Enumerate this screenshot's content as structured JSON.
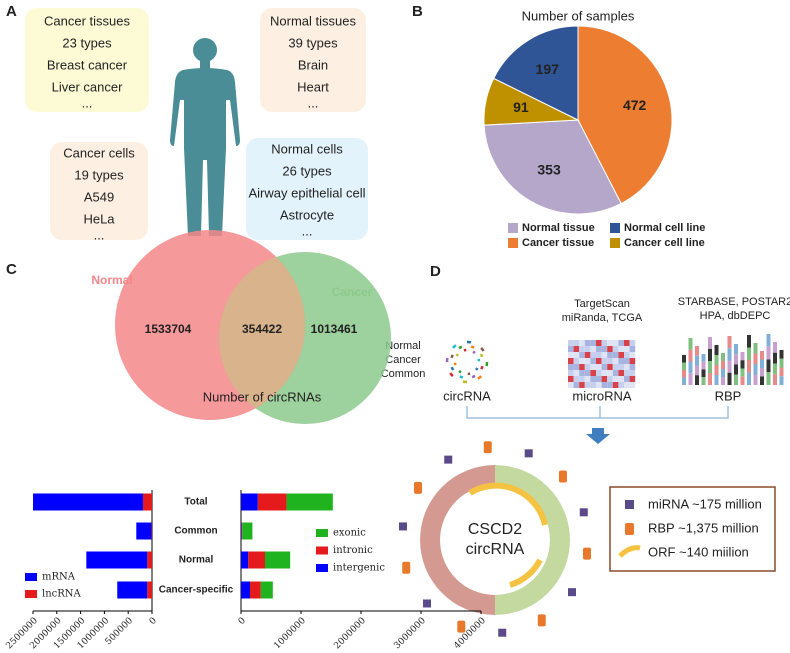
{
  "panels": {
    "letters": [
      "A",
      "B",
      "C",
      "D"
    ]
  },
  "panel_a": {
    "boxes": [
      {
        "lines": [
          "Cancer tissues",
          "23 types",
          "Breast cancer",
          "Liver cancer",
          "..."
        ]
      },
      {
        "lines": [
          "Normal tissues",
          "39 types",
          "Brain",
          "Heart",
          "..."
        ]
      },
      {
        "lines": [
          "Cancer cells",
          "19 types",
          "A549",
          "HeLa",
          "..."
        ]
      },
      {
        "lines": [
          "Normal cells",
          "26 types",
          "Airway epithelial cell",
          "Astrocyte",
          "..."
        ]
      }
    ]
  },
  "panel_d": {
    "circ_sources": [
      "Normal",
      "Cancer",
      "Common"
    ],
    "circ_label": "circRNA",
    "mirna_sources": [
      "TargetScan",
      "miRanda, TCGA"
    ],
    "mirna_label": "microRNA",
    "rbp_sources": [
      "STARBASE, POSTAR2",
      "HPA, dbDEPC"
    ],
    "rbp_label": "RBP",
    "center": [
      "CSCD2",
      "circRNA"
    ],
    "legend": [
      "miRNA ~175 million",
      "RBP ~1,375 million",
      "ORF ~140 miilion"
    ]
  },
  "chart_data": [
    {
      "type": "pie",
      "title": "Number of samples",
      "categories": [
        "Cancer tissue",
        "Normal tissue",
        "Cancer cell line",
        "Normal cell line"
      ],
      "values": [
        472,
        353,
        91,
        197
      ],
      "colors": [
        "#ed7d31",
        "#b4a7c9",
        "#bf9000",
        "#2f5597"
      ]
    },
    {
      "type": "venn",
      "title": "Number of circRNAs",
      "sets": [
        {
          "name": "Normal",
          "color": "#f4878a",
          "value": 1533704
        },
        {
          "name": "Cancer",
          "color": "#8cc98c",
          "value": 1013461
        }
      ],
      "intersection": 354422
    },
    {
      "type": "hbar_stacked",
      "categories": [
        "Total",
        "Common",
        "Normal",
        "Cancer-specific"
      ],
      "series": [
        {
          "name": "lncRNA",
          "color": "#e41a1c",
          "values": [
            190000,
            10000,
            100000,
            100000
          ]
        },
        {
          "name": "mRNA",
          "color": "#0000ff",
          "values": [
            2310000,
            320000,
            1280000,
            630000
          ]
        }
      ],
      "xlim": [
        2500000,
        0
      ],
      "xticks": [
        2500000,
        2000000,
        1500000,
        1000000,
        500000,
        0
      ]
    },
    {
      "type": "hbar_stacked",
      "series": [
        {
          "name": "intergenic",
          "color": "#0000ff",
          "values": [
            280000,
            10000,
            120000,
            150000
          ]
        },
        {
          "name": "intronic",
          "color": "#e41a1c",
          "values": [
            480000,
            10000,
            280000,
            180000
          ]
        },
        {
          "name": "exonic",
          "color": "#1fb41f",
          "values": [
            770000,
            170000,
            420000,
            200000
          ]
        }
      ],
      "xlim": [
        0,
        4000000
      ],
      "xticks": [
        0,
        1000000,
        2000000,
        3000000,
        4000000
      ]
    }
  ]
}
